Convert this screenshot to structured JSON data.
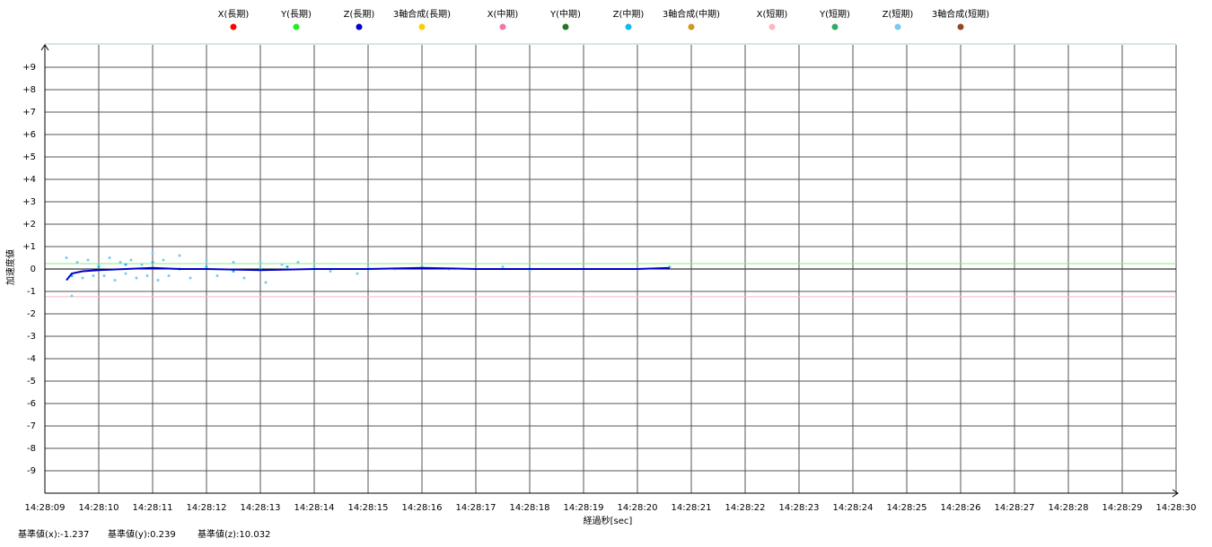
{
  "chart_data": {
    "type": "scatter",
    "y_label": "加速度値",
    "x_label": "経過秒[sec]",
    "xlim": [
      "14:28:09",
      "14:28:30"
    ],
    "xticks": [
      "14:28:09",
      "14:28:10",
      "14:28:11",
      "14:28:12",
      "14:28:13",
      "14:28:14",
      "14:28:15",
      "14:28:16",
      "14:28:17",
      "14:28:18",
      "14:28:19",
      "14:28:20",
      "14:28:21",
      "14:28:22",
      "14:28:23",
      "14:28:24",
      "14:28:25",
      "14:28:26",
      "14:28:27",
      "14:28:28",
      "14:28:29",
      "14:28:30"
    ],
    "ylim": [
      -10,
      10
    ],
    "yticks": [
      {
        "value": 9,
        "label": "+9"
      },
      {
        "value": 8,
        "label": "+8"
      },
      {
        "value": 7,
        "label": "+7"
      },
      {
        "value": 6,
        "label": "+6"
      },
      {
        "value": 5,
        "label": "+5"
      },
      {
        "value": 4,
        "label": "+4"
      },
      {
        "value": 3,
        "label": "+3"
      },
      {
        "value": 2,
        "label": "+2"
      },
      {
        "value": 1,
        "label": "+1"
      },
      0,
      -1,
      -2,
      -3,
      -4,
      -5,
      -6,
      -7,
      -8,
      -9
    ],
    "grid": true,
    "series": [
      {
        "name": "X(長期)",
        "color": "#ff0000",
        "mode": "line",
        "x": [],
        "values": []
      },
      {
        "name": "Y(長期)",
        "color": "#22ee22",
        "mode": "line",
        "x": [],
        "values": []
      },
      {
        "name": "Z(長期)",
        "color": "#0000cc",
        "mode": "line",
        "x": [
          "14:28:09.4",
          "14:28:09.5",
          "14:28:09.7",
          "14:28:10.0",
          "14:28:10.5",
          "14:28:11.0",
          "14:28:11.5",
          "14:28:12.0",
          "14:28:13.0",
          "14:28:14.0",
          "14:28:15.0",
          "14:28:16.0",
          "14:28:17.0",
          "14:28:18.0",
          "14:28:19.0",
          "14:28:20.0",
          "14:28:20.6"
        ],
        "values": [
          -0.5,
          -0.2,
          -0.1,
          -0.05,
          0.0,
          0.05,
          0.0,
          0.0,
          -0.05,
          0.0,
          0.0,
          0.05,
          0.0,
          0.0,
          0.0,
          0.0,
          0.05
        ]
      },
      {
        "name": "3軸合成(長期)",
        "color": "#ffcc00",
        "mode": "line",
        "x": [],
        "values": []
      },
      {
        "name": "X(中期)",
        "color": "#ee77aa",
        "mode": "scatter",
        "x": [],
        "values": []
      },
      {
        "name": "Y(中期)",
        "color": "#227722",
        "mode": "scatter",
        "x": [],
        "values": []
      },
      {
        "name": "Z(中期)",
        "color": "#11bbee",
        "mode": "scatter",
        "x": [
          "14:28:09.5",
          "14:28:10.0",
          "14:28:10.5",
          "14:28:11.0",
          "14:28:11.5",
          "14:28:12.0",
          "14:28:12.5",
          "14:28:13.0",
          "14:28:13.5",
          "14:28:14.0",
          "14:28:15.0",
          "14:28:16.0",
          "14:28:17.0",
          "14:28:18.0",
          "14:28:19.0",
          "14:28:20.0",
          "14:28:20.6"
        ],
        "values": [
          -0.3,
          0.1,
          0.2,
          0.3,
          0.0,
          0.1,
          -0.1,
          0.0,
          0.1,
          0.0,
          0.0,
          0.1,
          0.0,
          0.0,
          0.0,
          0.0,
          0.1
        ]
      },
      {
        "name": "3軸合成(中期)",
        "color": "#cc9922",
        "mode": "scatter",
        "x": [],
        "values": []
      },
      {
        "name": "X(短期)",
        "color": "#ffb6c1",
        "mode": "scatter",
        "x": [],
        "values": []
      },
      {
        "name": "Y(短期)",
        "color": "#33aa66",
        "mode": "scatter",
        "x": [],
        "values": []
      },
      {
        "name": "Z(短期)",
        "color": "#77ccee",
        "mode": "scatter",
        "x": [
          "14:28:09.4",
          "14:28:09.5",
          "14:28:09.6",
          "14:28:09.7",
          "14:28:09.8",
          "14:28:09.9",
          "14:28:10.0",
          "14:28:10.1",
          "14:28:10.2",
          "14:28:10.3",
          "14:28:10.4",
          "14:28:10.5",
          "14:28:10.6",
          "14:28:10.7",
          "14:28:10.8",
          "14:28:10.9",
          "14:28:11.0",
          "14:28:11.1",
          "14:28:11.2",
          "14:28:11.3",
          "14:28:11.5",
          "14:28:11.7",
          "14:28:12.0",
          "14:28:12.2",
          "14:28:12.5",
          "14:28:12.7",
          "14:28:13.0",
          "14:28:13.1",
          "14:28:13.4",
          "14:28:13.7",
          "14:28:14.0",
          "14:28:14.3",
          "14:28:14.8",
          "14:28:15.0",
          "14:28:15.5",
          "14:28:16.0",
          "14:28:16.5",
          "14:28:17.0",
          "14:28:17.5",
          "14:28:18.0",
          "14:28:19.0",
          "14:28:20.0",
          "14:28:20.6"
        ],
        "values": [
          0.5,
          -1.2,
          0.3,
          -0.4,
          0.4,
          -0.3,
          0.2,
          -0.3,
          0.5,
          -0.5,
          0.3,
          -0.2,
          0.4,
          -0.4,
          0.2,
          -0.3,
          0.7,
          -0.5,
          0.4,
          -0.3,
          0.6,
          -0.4,
          0.4,
          -0.3,
          0.3,
          -0.4,
          0.3,
          -0.6,
          0.2,
          0.3,
          0.1,
          -0.1,
          -0.2,
          0.1,
          0.0,
          0.1,
          0.0,
          0.0,
          0.1,
          -0.1,
          0.0,
          0.0,
          0.1
        ]
      },
      {
        "name": "3軸合成(短期)",
        "color": "#994422",
        "mode": "line",
        "x": [],
        "values": []
      }
    ],
    "reference": [
      {
        "label": "基準値(x):",
        "value": -1.237,
        "color": "#ffb6c1"
      },
      {
        "label": "基準値(y):",
        "value": 0.239,
        "color": "#88ee88"
      },
      {
        "label": "基準値(z):",
        "value": 10.032,
        "color": "#0000cc"
      }
    ]
  }
}
